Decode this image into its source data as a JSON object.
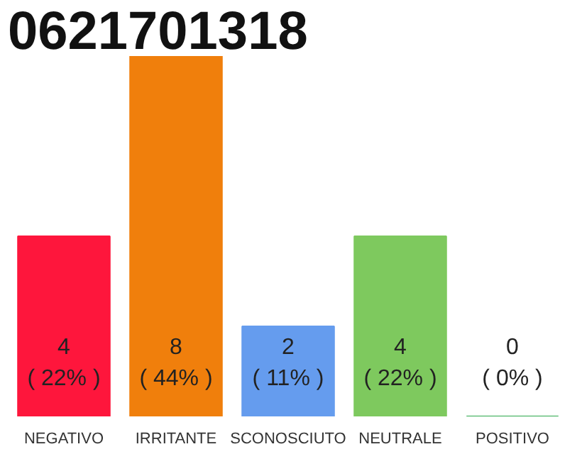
{
  "chart_data": {
    "type": "bar",
    "title": "0621701318",
    "categories": [
      "NEGATIVO",
      "IRRITANTE",
      "SCONOSCIUTO",
      "NEUTRALE",
      "POSITIVO"
    ],
    "values": [
      4,
      8,
      2,
      4,
      0
    ],
    "colors": [
      "#fe163c",
      "#f07f0c",
      "#659cee",
      "#7ec95e",
      "#2aa84a"
    ],
    "value_labels": [
      "4\n( 22% )",
      "8\n( 44% )",
      "2\n( 11% )",
      "4\n( 22% )",
      "0\n( 0% )"
    ],
    "grid": false
  }
}
